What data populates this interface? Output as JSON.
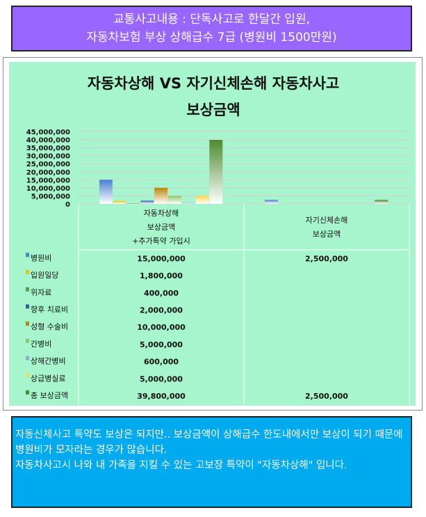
{
  "banner": {
    "line1": "교통사고내용 : 단독사고로 한달간 입원,",
    "line2": "자동차보험 부상 상해급수 7급 (병원비 1500만원)"
  },
  "chart_data": {
    "type": "bar",
    "title_line1": "자동차상해 VS 자기신체손해 자동차사고",
    "title_line2": "보상금액",
    "ylim": [
      0,
      45000000
    ],
    "yticks": [
      "0",
      "5,000,000",
      "10,000,000",
      "15,000,000",
      "20,000,000",
      "25,000,000",
      "30,000,000",
      "35,000,000",
      "40,000,000",
      "45,000,000"
    ],
    "categories": [
      [
        "자동차상해",
        "보상금액",
        "+추가특약 가입시"
      ],
      [
        "자기신체손해",
        "보상금액"
      ]
    ],
    "series": [
      {
        "name": "병원비",
        "color": "#4a7fd0",
        "values": [
          15000000,
          2500000
        ],
        "labels": [
          "15,000,000",
          "2,500,000"
        ]
      },
      {
        "name": "입원일당",
        "color": "#f2c200",
        "values": [
          1800000,
          null
        ],
        "labels": [
          "1,800,000",
          ""
        ]
      },
      {
        "name": "위자료",
        "color": "#5f9a4a",
        "values": [
          400000,
          null
        ],
        "labels": [
          "400,000",
          ""
        ]
      },
      {
        "name": "향후 치료비",
        "color": "#2f5ca8",
        "values": [
          2000000,
          null
        ],
        "labels": [
          "2,000,000",
          ""
        ]
      },
      {
        "name": "성형 수술비",
        "color": "#b8860b",
        "values": [
          10000000,
          null
        ],
        "labels": [
          "10,000,000",
          ""
        ]
      },
      {
        "name": "간병비",
        "color": "#8cc76a",
        "values": [
          5000000,
          null
        ],
        "labels": [
          "5,000,000",
          ""
        ]
      },
      {
        "name": "상해간병비",
        "color": "#8fa8e8",
        "values": [
          600000,
          null
        ],
        "labels": [
          "600,000",
          ""
        ]
      },
      {
        "name": "상급병실료",
        "color": "#ffd84a",
        "values": [
          5000000,
          null
        ],
        "labels": [
          "5,000,000",
          ""
        ]
      },
      {
        "name": "총 보상금액",
        "color": "#4e8a30",
        "values": [
          39800000,
          2500000
        ],
        "labels": [
          "39,800,000",
          "2,500,000"
        ]
      }
    ]
  },
  "footer": {
    "line1": "자동신체사고 특약도 보상은 되지만.. 보상금액이 상해급수 한도내에서만 보상이 되기  때문에 병원비가 모자라는 경우가 많습니다.",
    "line2": "자동차사고시 나와 내 가족을 지킬 수 있는 고보장 특약이 \"자동차상해\" 입니다."
  }
}
